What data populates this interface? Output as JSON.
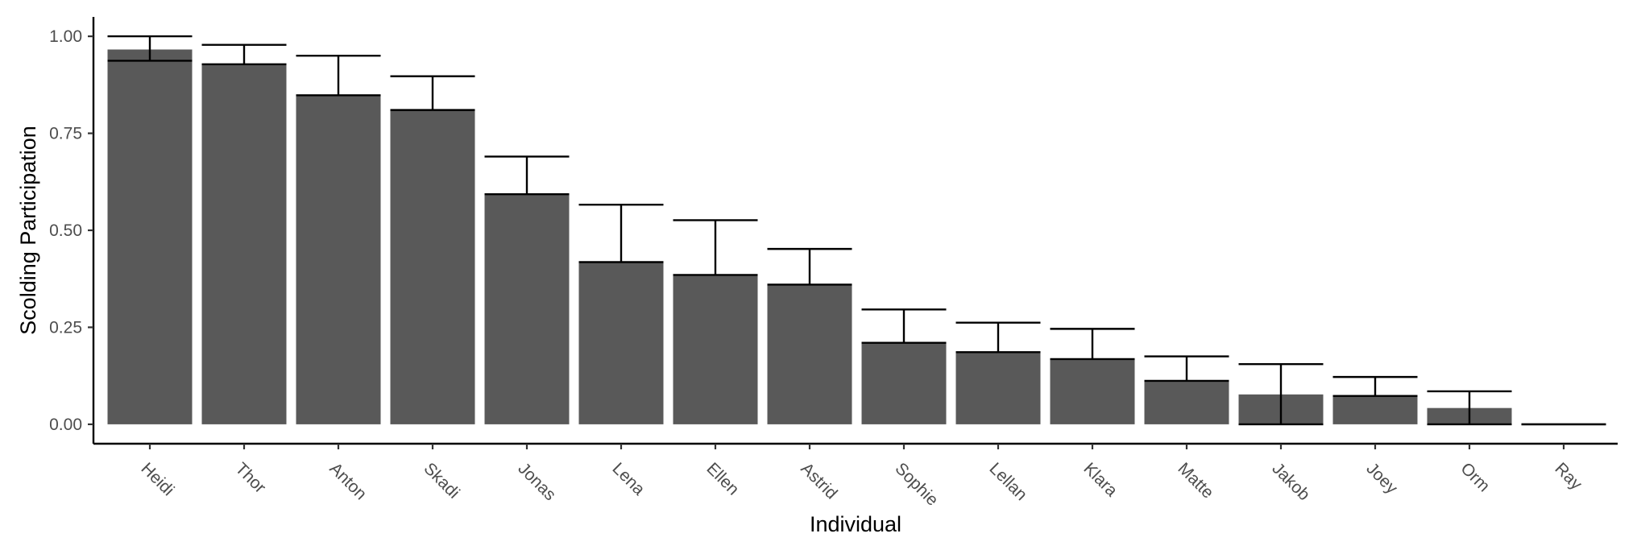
{
  "chart_data": {
    "type": "bar",
    "xlabel": "Individual",
    "ylabel": "Scolding Participation",
    "ylim": [
      -0.05,
      1.05
    ],
    "yticks": [
      0.0,
      0.25,
      0.5,
      0.75,
      1.0
    ],
    "ytick_labels": [
      "0.00",
      "0.25",
      "0.50",
      "0.75",
      "1.00"
    ],
    "grid": false,
    "legend": "none",
    "bar_color": "#595959",
    "categories": [
      "Heidi",
      "Thor",
      "Anton",
      "Skadi",
      "Jonas",
      "Lena",
      "Ellen",
      "Astrid",
      "Sophie",
      "Lellan",
      "Klara",
      "Matte",
      "Jakob",
      "Joey",
      "Orm",
      "Ray"
    ],
    "values": [
      0.966,
      0.928,
      0.848,
      0.81,
      0.593,
      0.418,
      0.385,
      0.36,
      0.21,
      0.186,
      0.168,
      0.112,
      0.077,
      0.073,
      0.042,
      0.0
    ],
    "error_lower": [
      0.937,
      0.928,
      0.848,
      0.81,
      0.593,
      0.418,
      0.385,
      0.36,
      0.21,
      0.186,
      0.168,
      0.112,
      0.0,
      0.073,
      0.0,
      0.0
    ],
    "error_upper": [
      1.0,
      0.978,
      0.95,
      0.897,
      0.69,
      0.566,
      0.526,
      0.452,
      0.296,
      0.262,
      0.246,
      0.175,
      0.155,
      0.122,
      0.085,
      0.0
    ]
  }
}
